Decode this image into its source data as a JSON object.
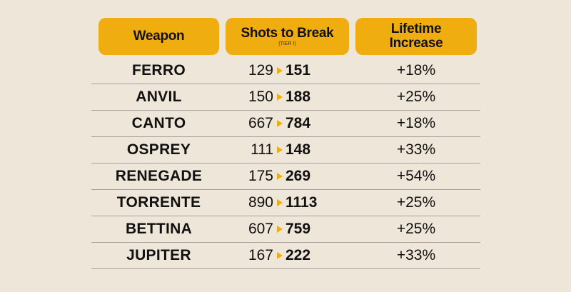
{
  "header": {
    "weapon": "Weapon",
    "shots_title": "Shots to Break",
    "shots_sub": "(TIER I)",
    "lifetime_line1": "Lifetime",
    "lifetime_line2": "Increase"
  },
  "colors": {
    "accent": "#f0ad0f",
    "background": "#efe6da"
  },
  "rows": [
    {
      "weapon": "FERRO",
      "old": "129",
      "new": "151",
      "increase": "+18%"
    },
    {
      "weapon": "ANVIL",
      "old": "150",
      "new": "188",
      "increase": "+25%"
    },
    {
      "weapon": "CANTO",
      "old": "667",
      "new": "784",
      "increase": "+18%"
    },
    {
      "weapon": "OSPREY",
      "old": "111",
      "new": "148",
      "increase": "+33%"
    },
    {
      "weapon": "RENEGADE",
      "old": "175",
      "new": "269",
      "increase": "+54%"
    },
    {
      "weapon": "TORRENTE",
      "old": "890",
      "new": "1113",
      "increase": "+25%"
    },
    {
      "weapon": "BETTINA",
      "old": "607",
      "new": "759",
      "increase": "+25%"
    },
    {
      "weapon": "JUPITER",
      "old": "167",
      "new": "222",
      "increase": "+33%"
    }
  ]
}
